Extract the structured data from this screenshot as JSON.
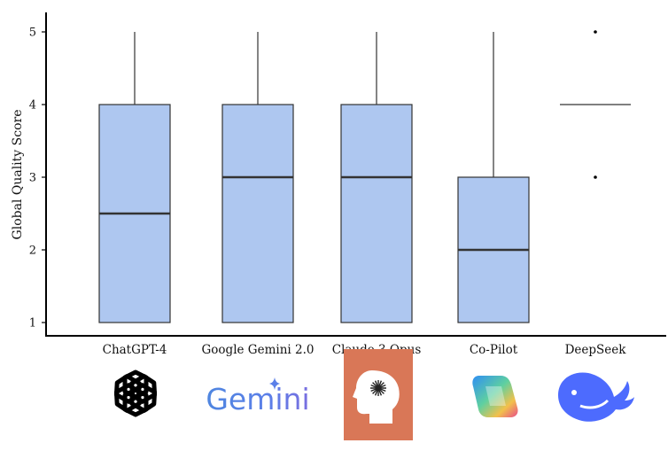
{
  "chart_data": {
    "type": "boxplot",
    "ylabel": "Global Quality Score",
    "yticks": [
      1,
      2,
      3,
      4,
      5
    ],
    "ylim": [
      1,
      5
    ],
    "grid": false,
    "colors": {
      "box_fill": "#aec7f0",
      "box_stroke": "#333333",
      "median": "#333333"
    },
    "categories": [
      "ChatGPT-4",
      "Google Gemini 2.0",
      "Claude 3 Opus",
      "Co-Pilot",
      "DeepSeek"
    ],
    "boxes": [
      {
        "name": "ChatGPT-4",
        "min": 1,
        "q1": 1,
        "median": 2.5,
        "q3": 4,
        "max": 5,
        "outliers": []
      },
      {
        "name": "Google Gemini 2.0",
        "min": 1,
        "q1": 1,
        "median": 3,
        "q3": 4,
        "max": 5,
        "outliers": []
      },
      {
        "name": "Claude 3 Opus",
        "min": 1,
        "q1": 1,
        "median": 3,
        "q3": 4,
        "max": 5,
        "outliers": []
      },
      {
        "name": "Co-Pilot",
        "min": 1,
        "q1": 1,
        "median": 2,
        "q3": 3,
        "max": 5,
        "outliers": []
      },
      {
        "name": "DeepSeek",
        "min": 4,
        "q1": 4,
        "median": 4,
        "q3": 4,
        "max": 4,
        "outliers": [
          5,
          3
        ]
      }
    ]
  },
  "logos": [
    {
      "name": "chatgpt-logo-icon",
      "color": "#000000"
    },
    {
      "name": "gemini-logo",
      "text": "Gemini",
      "color": "#4f86e0"
    },
    {
      "name": "claude-logo-icon",
      "color": "#d97757"
    },
    {
      "name": "copilot-logo-icon",
      "color": "#3d8bf2"
    },
    {
      "name": "deepseek-logo-icon",
      "color": "#4d6bfe"
    }
  ]
}
